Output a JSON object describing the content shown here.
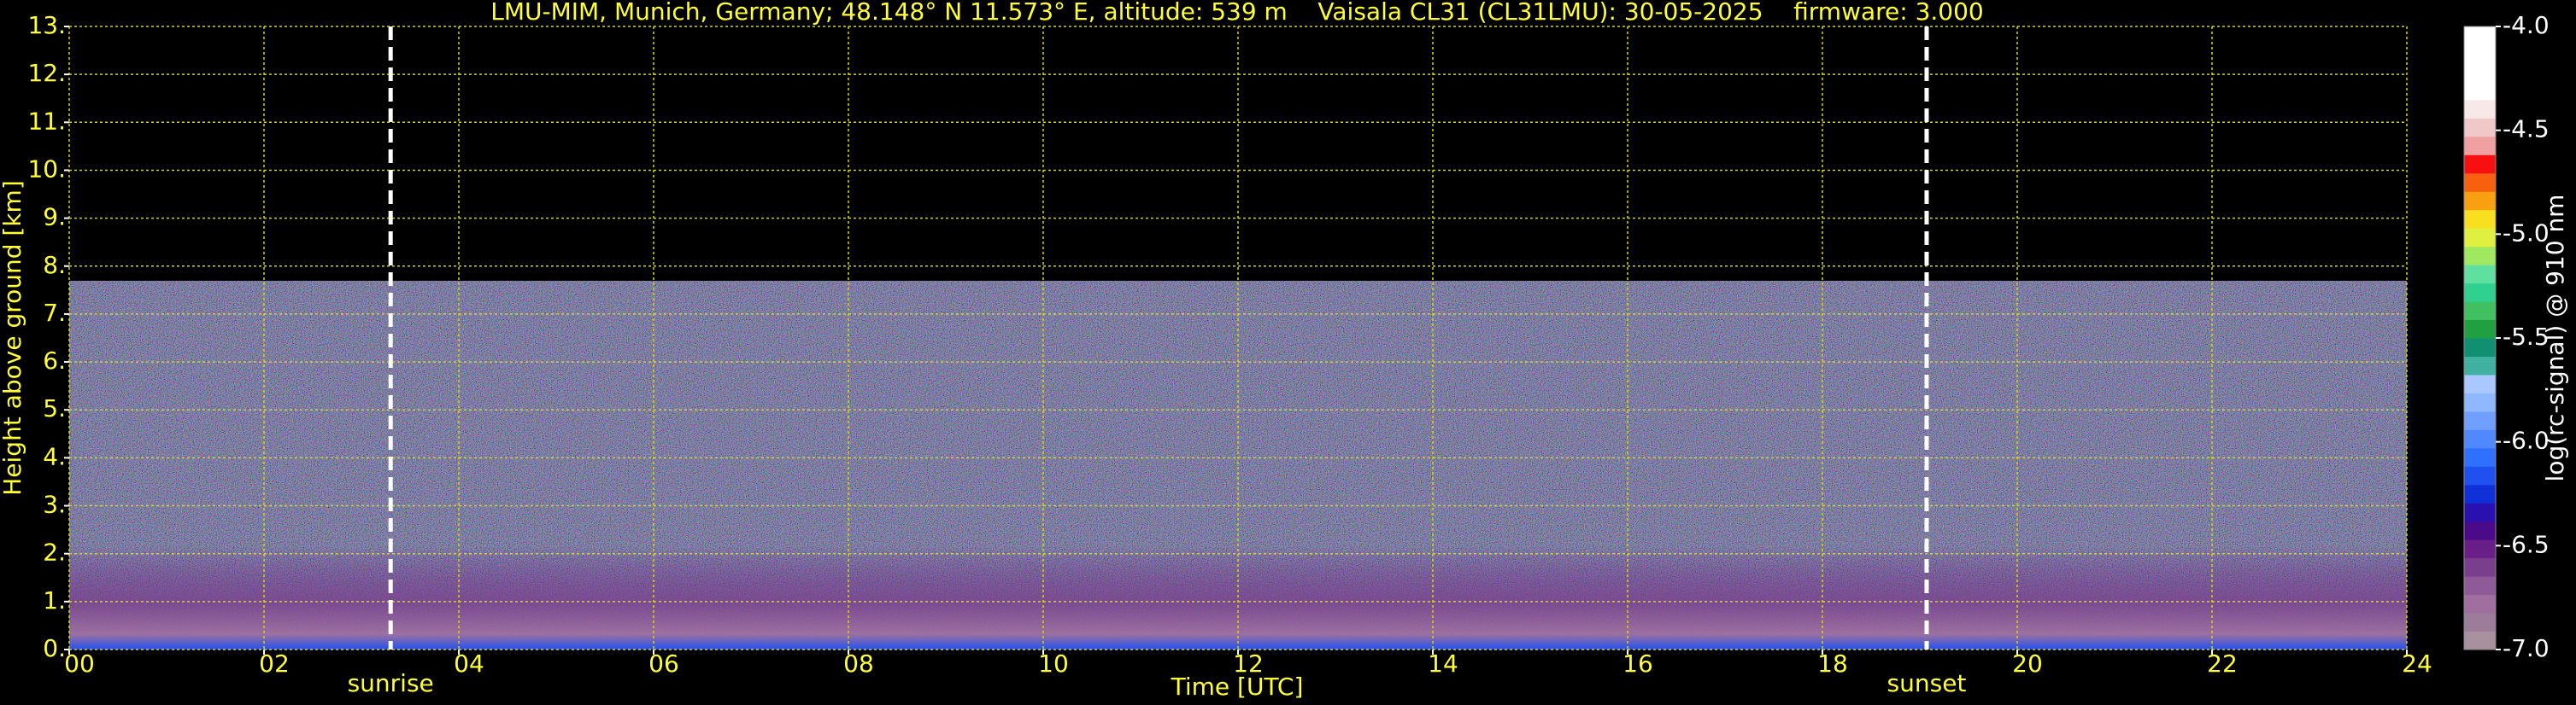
{
  "chart_data": {
    "type": "heatmap",
    "title": "LMU-MIM, Munich, Germany; 48.148° N 11.573° E, altitude: 539 m    Vaisala CL31 (CL31LMU): 30-05-2025    firmware: 3.000",
    "xlabel": "Time [UTC]",
    "ylabel": "Height above ground [km]",
    "xlim": [
      0,
      24
    ],
    "xticks": [
      {
        "value": 0,
        "label": "00"
      },
      {
        "value": 2,
        "label": "02"
      },
      {
        "value": 4,
        "label": "04"
      },
      {
        "value": 6,
        "label": "06"
      },
      {
        "value": 8,
        "label": "08"
      },
      10,
      12,
      14,
      16,
      18,
      20,
      22,
      24
    ],
    "ylim": [
      0,
      13
    ],
    "yticks": [
      {
        "value": 0,
        "label": "0."
      },
      {
        "value": 1,
        "label": "1."
      },
      {
        "value": 2,
        "label": "2."
      },
      {
        "value": 3,
        "label": "3."
      },
      {
        "value": 4,
        "label": "4."
      },
      {
        "value": 5,
        "label": "5."
      },
      {
        "value": 6,
        "label": "6."
      },
      {
        "value": 7,
        "label": "7."
      },
      {
        "value": 8,
        "label": "8."
      },
      {
        "value": 9,
        "label": "9."
      },
      {
        "value": 10,
        "label": "10."
      },
      {
        "value": 11,
        "label": "11."
      },
      {
        "value": 12,
        "label": "12."
      },
      {
        "value": 13,
        "label": "13."
      }
    ],
    "grid": true,
    "grid_color": "#d8d800",
    "text_color": "#ffff33",
    "annotations": [
      {
        "label": "sunrise",
        "x": 3.3
      },
      {
        "label": "sunset",
        "x": 19.07
      }
    ],
    "colorbar": {
      "label": "log(rc-signal) @ 910 nm",
      "lim": [
        -7,
        -4
      ],
      "ticks": [
        {
          "value": -7,
          "label": "-7.0"
        },
        {
          "value": -6.5,
          "label": "-6.5"
        },
        {
          "value": -6,
          "label": "-6.0"
        },
        {
          "value": -5.5,
          "label": "-5.5"
        },
        {
          "value": -5,
          "label": "-5.0"
        },
        {
          "value": -4.5,
          "label": "-4.5"
        },
        {
          "value": -4,
          "label": "-4.0"
        }
      ],
      "colors": [
        "#a8909e",
        "#9c7c98",
        "#a06fa0",
        "#8f5a98",
        "#7a3f8c",
        "#6a1f88",
        "#4a0a8a",
        "#2a10b0",
        "#1030d8",
        "#2050f0",
        "#3070ff",
        "#5088ff",
        "#70a0ff",
        "#90b8ff",
        "#a8c8ff",
        "#40b0a0",
        "#109070",
        "#20a040",
        "#40c060",
        "#30d090",
        "#60e0a0",
        "#a0e860",
        "#e0f040",
        "#f8e020",
        "#f8a010",
        "#f86010",
        "#f81010",
        "#f0a0a0",
        "#f0c8c8",
        "#f8e8e8",
        "#ffffff",
        "#ffffff",
        "#ffffff",
        "#ffffff"
      ]
    }
  }
}
